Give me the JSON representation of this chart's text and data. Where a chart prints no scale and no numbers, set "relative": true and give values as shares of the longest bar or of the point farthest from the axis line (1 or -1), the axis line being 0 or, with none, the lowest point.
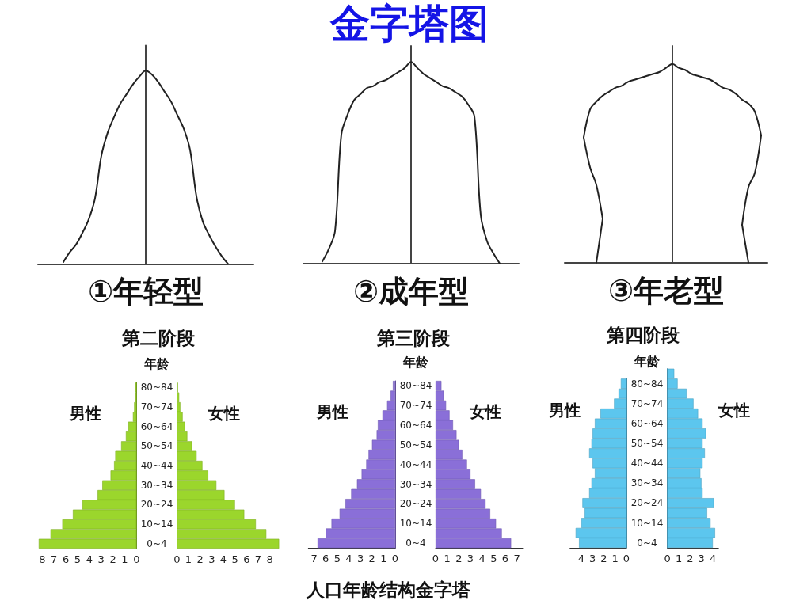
{
  "chart_data": [
    {
      "type": "line",
      "relative": true,
      "xlabel": "①年轻型",
      "categories": [
        null,
        null,
        null,
        null,
        null,
        null,
        null,
        null,
        null,
        null,
        null,
        null,
        null,
        null,
        null,
        null,
        null,
        null,
        null,
        null,
        null,
        null,
        null,
        null,
        null,
        null,
        null,
        null,
        null,
        null,
        null,
        null,
        null,
        null,
        null
      ],
      "series": [
        {
          "color": "#222222",
          "values": [
            null,
            null,
            null,
            null,
            0.01,
            0.06,
            0.1,
            0.16,
            0.23,
            0.34,
            0.56,
            0.68,
            0.76,
            0.83,
            0.88,
            0.93,
            0.97,
            1,
            0.98,
            0.94,
            0.89,
            0.84,
            0.77,
            0.7,
            0.59,
            0.35,
            0.22,
            0.15,
            0.09,
            0.04,
            0,
            null,
            null,
            null,
            null
          ]
        }
      ]
    },
    {
      "type": "line",
      "relative": true,
      "title": "金字塔图",
      "xlabel": "②成年型",
      "categories": [
        null,
        null,
        null,
        null,
        null,
        null,
        null,
        null,
        null,
        null,
        null,
        null,
        null,
        null,
        null,
        null,
        null,
        null,
        null,
        null,
        null,
        null,
        null,
        null,
        null,
        null,
        null,
        null,
        null,
        null,
        null,
        null,
        null,
        null,
        null
      ],
      "series": [
        {
          "color": "#222222",
          "values": [
            null,
            null,
            null,
            0.01,
            0.07,
            0.16,
            0.64,
            0.74,
            0.81,
            0.84,
            0.87,
            0.88,
            0.9,
            0.91,
            0.93,
            0.95,
            0.97,
            1,
            0.97,
            0.94,
            0.92,
            0.9,
            0.88,
            0.87,
            0.85,
            0.83,
            0.79,
            0.73,
            0.24,
            0.11,
            0.05,
            0,
            null,
            null,
            null
          ]
        }
      ]
    },
    {
      "type": "line",
      "relative": true,
      "xlabel": "③年老型",
      "categories": [
        null,
        null,
        null,
        null,
        null,
        null,
        null,
        null,
        null,
        null,
        null,
        null,
        null,
        null,
        null,
        null,
        null,
        null,
        null,
        null,
        null,
        null,
        null,
        null,
        null,
        null,
        null,
        null,
        null,
        null,
        null,
        null,
        null
      ],
      "series": [
        {
          "color": "#222222",
          "values": [
            null,
            null,
            null,
            0.63,
            0.77,
            0.81,
            0.84,
            0.86,
            0.88,
            0.89,
            0.91,
            0.92,
            0.93,
            0.94,
            0.95,
            0.96,
            0.98,
            1,
            0.98,
            0.97,
            0.95,
            0.94,
            0.93,
            0.92,
            0.9,
            0.88,
            0.87,
            0.85,
            0.82,
            0.8,
            0.76,
            0.64,
            null
          ]
        },
        {
          "color": "#222222",
          "values": [
            null,
            null,
            null,
            0.63,
            0.48,
            0.39,
            0.22,
            null,
            null,
            null,
            null,
            null,
            null,
            null,
            null,
            null,
            null,
            null,
            null,
            null,
            null,
            null,
            null,
            null,
            null,
            null,
            null,
            null,
            null,
            null,
            null,
            null,
            null
          ]
        },
        {
          "color": "#222222",
          "values": [
            null,
            null,
            null,
            null,
            null,
            0,
            0.22,
            null,
            null,
            null,
            null,
            null,
            null,
            null,
            null,
            null,
            null,
            null,
            null,
            null,
            null,
            null,
            null,
            null,
            null,
            null,
            null,
            null,
            null,
            null,
            null,
            null,
            null
          ]
        },
        {
          "color": "#222222",
          "values": [
            null,
            null,
            null,
            null,
            null,
            null,
            null,
            null,
            null,
            null,
            null,
            null,
            null,
            null,
            null,
            null,
            null,
            null,
            null,
            null,
            null,
            null,
            null,
            null,
            null,
            null,
            null,
            null,
            0.19,
            0.38,
            0.45,
            0.64,
            null
          ]
        },
        {
          "color": "#222222",
          "values": [
            null,
            null,
            null,
            null,
            null,
            null,
            null,
            null,
            null,
            null,
            null,
            null,
            null,
            null,
            null,
            null,
            null,
            null,
            null,
            null,
            null,
            null,
            null,
            null,
            null,
            null,
            null,
            null,
            0.19,
            0,
            null,
            null,
            null
          ]
        }
      ]
    },
    {
      "type": "bar",
      "orientation": "horizontal",
      "categories": [
        null,
        null,
        null,
        null,
        null,
        null,
        null,
        null,
        null,
        null,
        null,
        null,
        null,
        null,
        null,
        null,
        null
      ],
      "series": [
        {
          "name": "男性",
          "color": "#9bd62c",
          "values": [
            0.1,
            0.1,
            0.2,
            0.3,
            0.7,
            0.9,
            1.3,
            1.8,
            1.9,
            2.2,
            2.9,
            3.3,
            4.6,
            5.4,
            6.3,
            7.3,
            8.3
          ]
        }
      ],
      "xlim": [
        9,
        0
      ],
      "xticks": [
        8,
        7,
        6,
        5,
        4,
        3,
        2,
        1,
        0
      ]
    },
    {
      "type": "bar",
      "orientation": "horizontal",
      "title": "第二阶段",
      "ylabel": "年龄",
      "categories": [
        "80~84",
        null,
        "70~74",
        null,
        "60~64",
        null,
        "50~54",
        null,
        "40~44",
        null,
        "30~34",
        null,
        "20~24",
        null,
        "10~14",
        null,
        "0~4"
      ],
      "series": [
        {
          "name": "女性",
          "color": "#9bd62c",
          "values": [
            0.1,
            0.2,
            0.3,
            0.5,
            0.7,
            0.9,
            1.3,
            1.7,
            2.2,
            2.7,
            3.4,
            4.1,
            5.0,
            5.8,
            6.8,
            7.7,
            8.8
          ]
        }
      ],
      "xlim": [
        0,
        9
      ],
      "xticks": [
        0,
        1,
        2,
        3,
        4,
        5,
        6,
        7,
        8
      ]
    },
    {
      "type": "bar",
      "orientation": "horizontal",
      "categories": [
        null,
        null,
        null,
        null,
        null,
        null,
        null,
        null,
        null,
        null,
        null,
        null,
        null,
        null,
        null,
        null,
        null
      ],
      "series": [
        {
          "name": "男性",
          "color": "#8a6fd8",
          "values": [
            0.2,
            0.4,
            0.7,
            1.1,
            1.5,
            1.6,
            2.0,
            2.3,
            2.5,
            2.9,
            3.3,
            3.8,
            4.3,
            4.8,
            5.5,
            6.0,
            6.7
          ]
        }
      ],
      "xlim": [
        7.5,
        0
      ],
      "xticks": [
        7,
        6,
        5,
        4,
        3,
        2,
        1,
        0
      ]
    },
    {
      "type": "bar",
      "orientation": "horizontal",
      "title": "第三阶段",
      "ylabel": "年龄",
      "annotations": [
        "人口年龄结构金字塔"
      ],
      "categories": [
        "80~84",
        null,
        "70~74",
        null,
        "60~64",
        null,
        "50~54",
        null,
        "40~44",
        null,
        "30~34",
        null,
        "20~24",
        null,
        "10~14",
        null,
        "0~4"
      ],
      "series": [
        {
          "name": "女性",
          "color": "#8a6fd8",
          "values": [
            0.5,
            0.7,
            0.9,
            1.2,
            1.5,
            1.8,
            2.0,
            2.3,
            2.7,
            3.0,
            3.4,
            3.9,
            4.3,
            4.7,
            5.2,
            5.7,
            6.5
          ]
        }
      ],
      "xlim": [
        0,
        7.5
      ],
      "xticks": [
        0,
        1,
        2,
        3,
        4,
        5,
        6,
        7
      ]
    },
    {
      "type": "bar",
      "orientation": "horizontal",
      "categories": [
        null,
        null,
        null,
        null,
        null,
        null,
        null,
        null,
        null,
        null,
        null,
        null,
        null,
        null,
        null,
        null,
        null
      ],
      "series": [
        {
          "name": "男性",
          "color": "#5cc6ee",
          "values": [
            0.5,
            0.7,
            1.1,
            2.3,
            2.8,
            3.0,
            3.1,
            3.3,
            3.0,
            2.8,
            3.1,
            3.3,
            3.9,
            3.7,
            4.0,
            4.5,
            4.2
          ]
        }
      ],
      "xlim": [
        5,
        0
      ],
      "xticks": [
        4,
        3,
        2,
        1,
        0
      ]
    },
    {
      "type": "bar",
      "orientation": "horizontal",
      "title": "第四阶段",
      "ylabel": "年龄",
      "categories": [
        null,
        "80~84",
        null,
        "70~74",
        null,
        "60~64",
        null,
        "50~54",
        null,
        "40~44",
        null,
        "30~34",
        null,
        "20~24",
        null,
        "10~14",
        null,
        "0~4"
      ],
      "series": [
        {
          "name": "女性",
          "color": "#5cc6ee",
          "values": [
            0.6,
            0.9,
            1.7,
            2.3,
            2.7,
            3.1,
            3.4,
            3.1,
            3.3,
            3.1,
            2.9,
            3.0,
            3.1,
            4.1,
            3.5,
            3.8,
            4.2,
            4.0
          ]
        }
      ],
      "xlim": [
        0,
        4.5
      ],
      "xticks": [
        0,
        1,
        2,
        3,
        4
      ]
    }
  ]
}
